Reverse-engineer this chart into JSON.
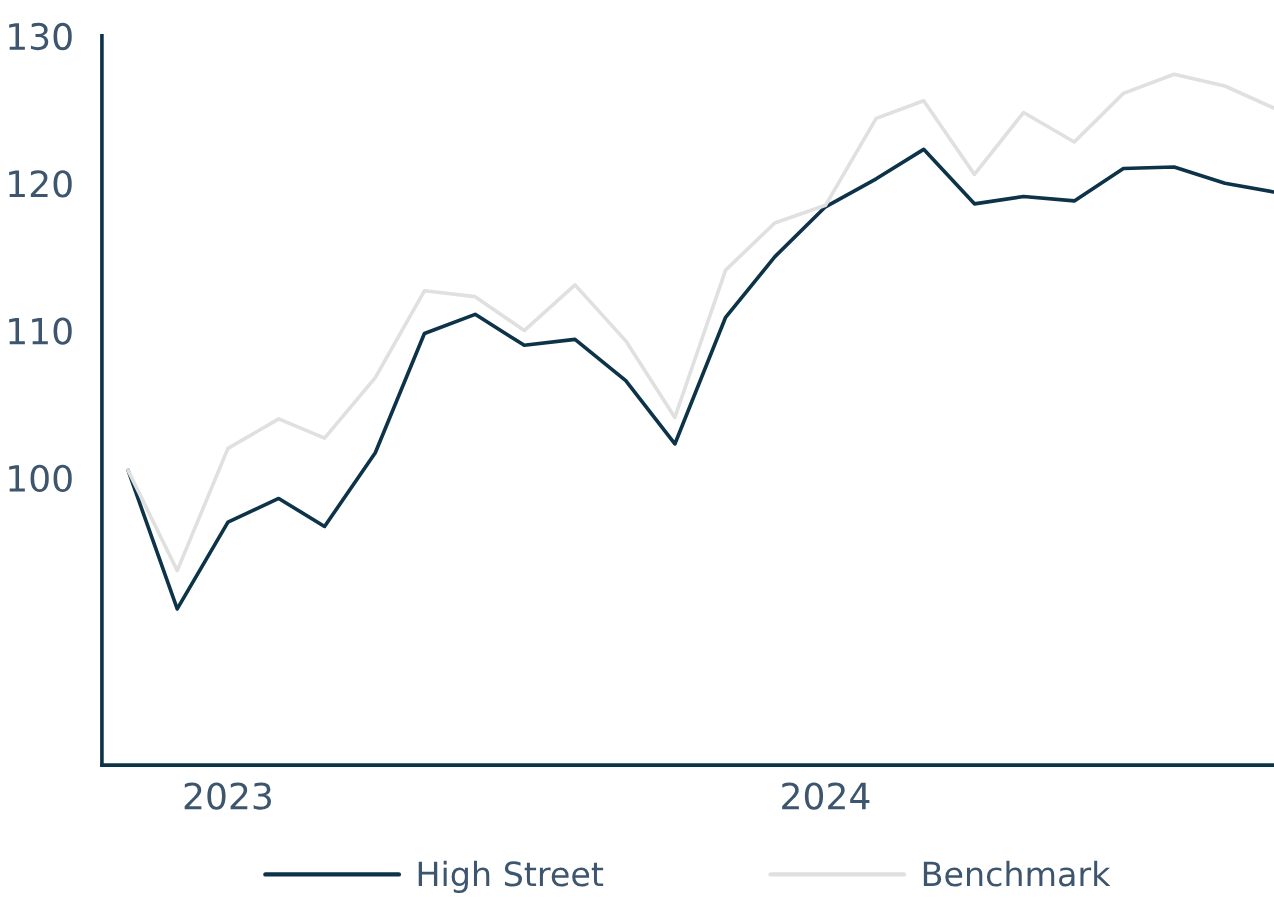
{
  "chart_data": {
    "type": "line",
    "x": [
      "2022-11",
      "2022-12",
      "2023-01",
      "2023-02",
      "2023-03",
      "2023-04",
      "2023-05",
      "2023-06",
      "2023-07",
      "2023-08",
      "2023-09",
      "2023-10",
      "2023-11",
      "2023-12",
      "2024-01",
      "2024-02",
      "2024-03",
      "2024-04",
      "2024-05",
      "2024-06",
      "2024-07",
      "2024-08",
      "2024-09",
      "2024-10"
    ],
    "series": [
      {
        "name": "High Street",
        "color": "#0d3349",
        "values": [
          100.5,
          91.1,
          97.0,
          98.6,
          96.7,
          101.7,
          109.8,
          111.1,
          109.0,
          109.4,
          106.6,
          102.3,
          110.9,
          115.0,
          118.4,
          120.3,
          122.3,
          118.6,
          119.1,
          118.8,
          121.0,
          121.1,
          120.0,
          119.4
        ]
      },
      {
        "name": "Benchmark",
        "color": "#e0e0e0",
        "values": [
          100.5,
          93.7,
          102.0,
          104.0,
          102.7,
          106.8,
          112.7,
          112.3,
          110.0,
          113.1,
          109.3,
          104.1,
          114.1,
          117.3,
          118.5,
          124.4,
          125.6,
          120.6,
          124.8,
          122.8,
          126.1,
          127.4,
          126.6,
          125.1
        ]
      }
    ],
    "xlim": [
      "2022-10-16",
      "2024-10-01"
    ],
    "xticks": [
      {
        "value": "2023-01-01",
        "label": "2023"
      },
      {
        "value": "2024-01-01",
        "label": "2024"
      }
    ],
    "ylim": [
      80.5,
      130
    ],
    "yticks": [
      100,
      110,
      120,
      130
    ],
    "grid": false,
    "legend": "bottom",
    "marker": "none",
    "line_style": "solid"
  }
}
